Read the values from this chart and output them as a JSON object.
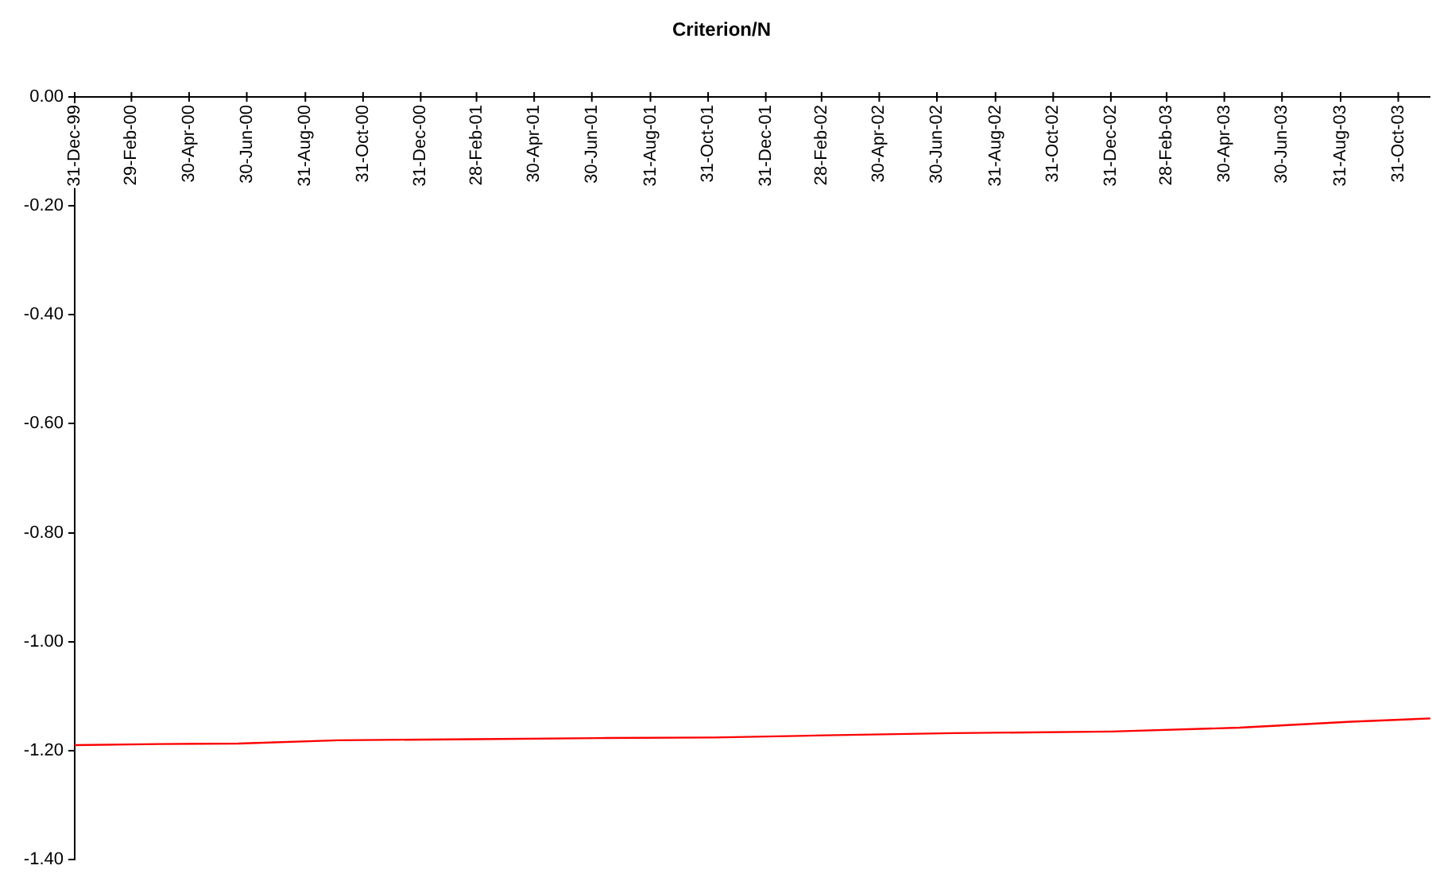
{
  "chart_data": {
    "type": "line",
    "title": "Criterion/N",
    "series": [
      {
        "color": "#ff0000",
        "x": [
          "1999-12-31",
          "2000-03-29",
          "2000-06-21",
          "2000-10-05",
          "2001-02-28",
          "2001-07-09",
          "2001-11-07",
          "2002-03-05",
          "2002-07-18",
          "2003-01-01",
          "2003-05-16",
          "2003-09-11",
          "2003-12-04"
        ],
        "values": [
          -1.19,
          -1.188,
          -1.187,
          -1.181,
          -1.179,
          -1.177,
          -1.176,
          -1.172,
          -1.168,
          -1.165,
          -1.158,
          -1.147,
          -1.141
        ]
      }
    ],
    "xlim": [
      "1999-12-31",
      "2003-12-04"
    ],
    "xticks": [
      {
        "value": "1999-12-31",
        "label": "31-Dec-99"
      },
      {
        "value": "2000-02-29",
        "label": "29-Feb-00"
      },
      {
        "value": "2000-04-30",
        "label": "30-Apr-00"
      },
      {
        "value": "2000-06-30",
        "label": "30-Jun-00"
      },
      {
        "value": "2000-08-31",
        "label": "31-Aug-00"
      },
      {
        "value": "2000-10-31",
        "label": "31-Oct-00"
      },
      {
        "value": "2000-12-31",
        "label": "31-Dec-00"
      },
      {
        "value": "2001-02-28",
        "label": "28-Feb-01"
      },
      {
        "value": "2001-04-30",
        "label": "30-Apr-01"
      },
      {
        "value": "2001-06-30",
        "label": "30-Jun-01"
      },
      {
        "value": "2001-08-31",
        "label": "31-Aug-01"
      },
      {
        "value": "2001-10-31",
        "label": "31-Oct-01"
      },
      {
        "value": "2001-12-31",
        "label": "31-Dec-01"
      },
      {
        "value": "2002-02-28",
        "label": "28-Feb-02"
      },
      {
        "value": "2002-04-30",
        "label": "30-Apr-02"
      },
      {
        "value": "2002-06-30",
        "label": "30-Jun-02"
      },
      {
        "value": "2002-08-31",
        "label": "31-Aug-02"
      },
      {
        "value": "2002-10-31",
        "label": "31-Oct-02"
      },
      {
        "value": "2002-12-31",
        "label": "31-Dec-02"
      },
      {
        "value": "2003-02-28",
        "label": "28-Feb-03"
      },
      {
        "value": "2003-04-30",
        "label": "30-Apr-03"
      },
      {
        "value": "2003-06-30",
        "label": "30-Jun-03"
      },
      {
        "value": "2003-08-31",
        "label": "31-Aug-03"
      },
      {
        "value": "2003-10-31",
        "label": "31-Oct-03"
      }
    ],
    "ylim": [
      -1.4,
      0
    ],
    "yticks": [
      {
        "value": 0,
        "label": "0.00"
      },
      {
        "value": -0.2,
        "label": "-0.20"
      },
      {
        "value": -0.4,
        "label": "-0.40"
      },
      {
        "value": -0.6,
        "label": "-0.60"
      },
      {
        "value": -0.8,
        "label": "-0.80"
      },
      {
        "value": -1.0,
        "label": "-1.00"
      },
      {
        "value": -1.2,
        "label": "-1.20"
      },
      {
        "value": -1.4,
        "label": "-1.40"
      }
    ],
    "grid": false,
    "legend": false,
    "marker": "none",
    "line_style": "solid"
  }
}
